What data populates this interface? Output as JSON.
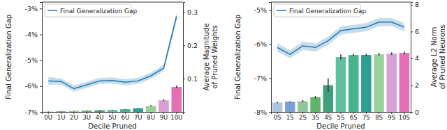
{
  "chart_data": [
    {
      "type": "bar",
      "x_label": "Decile Pruned",
      "y_label": "Final Generalization Gap",
      "y2_label": "Average Magnitude of Pruned Weights",
      "legend": "upper left",
      "categories": [
        "0U",
        "1U",
        "2U",
        "3U",
        "4U",
        "5U",
        "6U",
        "7U",
        "8U",
        "9U",
        "10U"
      ],
      "ylim": [
        -7,
        -2.75
      ],
      "yticks": [
        {
          "value": -7,
          "label": "-7%"
        },
        {
          "value": -6,
          "label": "-6%"
        },
        {
          "value": -5,
          "label": "-5%"
        },
        {
          "value": -4,
          "label": "-4%"
        },
        {
          "value": -3,
          "label": "-3%"
        }
      ],
      "y2lim": [
        0,
        0.33
      ],
      "y2ticks": [
        0.1,
        0.2,
        0.3
      ],
      "series": [
        {
          "name": "Final Generalization Gap",
          "type": "line",
          "color": "#1f77b4",
          "values": [
            -5.8,
            -5.82,
            -6.1,
            -5.95,
            -5.8,
            -5.78,
            -5.85,
            -5.8,
            -5.6,
            -5.3,
            -3.3
          ],
          "errors": [
            0.15,
            0.12,
            0.12,
            0.12,
            0.12,
            0.12,
            0.12,
            0.12,
            0.12,
            0.12,
            0.15
          ]
        },
        {
          "type": "bar",
          "axis": "y2",
          "colors": [
            "#b0c4de",
            "#7b9fd6",
            "#8fc79a",
            "#5fb36a",
            "#3f9f7f",
            "#5fbf9f",
            "#48b38f",
            "#2f9f8f",
            "#9ad39a",
            "#d9a0d8",
            "#e36fb6"
          ],
          "values": [
            0.001,
            0.002,
            0.003,
            0.004,
            0.005,
            0.006,
            0.008,
            0.011,
            0.018,
            0.035,
            0.075
          ],
          "errors": [
            0.0005,
            0.0005,
            0.001,
            0.001,
            0.001,
            0.001,
            0.001,
            0.001,
            0.002,
            0.003,
            0.004
          ]
        }
      ]
    },
    {
      "type": "bar",
      "x_label": "Decile Pruned",
      "y_label": "Final Generalization Gap",
      "y2_label": "Average L2 Norm of Pruned Neurons",
      "legend": "upper left",
      "categories": [
        "0S",
        "1S",
        "2S",
        "3S",
        "4S",
        "5S",
        "6S",
        "7S",
        "8S",
        "9S",
        "10S"
      ],
      "ylim": [
        -8,
        -4.76
      ],
      "yticks": [
        {
          "value": -8,
          "label": "-8%"
        },
        {
          "value": -7,
          "label": "-7%"
        },
        {
          "value": -6,
          "label": "-6%"
        },
        {
          "value": -5,
          "label": "-5%"
        }
      ],
      "y2lim": [
        0,
        8.2
      ],
      "y2ticks": [
        0,
        2,
        4,
        6,
        8
      ],
      "series": [
        {
          "name": "Final Generalization Gap",
          "type": "line",
          "color": "#1f77b4",
          "values": [
            -6.1,
            -6.3,
            -6.05,
            -6.1,
            -5.9,
            -5.6,
            -5.55,
            -5.5,
            -5.35,
            -5.35,
            -5.5
          ],
          "errors": [
            0.12,
            0.12,
            0.12,
            0.12,
            0.12,
            0.12,
            0.12,
            0.12,
            0.12,
            0.12,
            0.12
          ]
        },
        {
          "type": "bar",
          "axis": "y2",
          "colors": [
            "#b0c4de",
            "#7b9fd6",
            "#8fc79a",
            "#5fb36a",
            "#3f9f7f",
            "#5fbf9f",
            "#48b38f",
            "#2f9f8f",
            "#9ad39a",
            "#d9a0d8",
            "#e36fb6"
          ],
          "values": [
            0.7,
            0.75,
            0.8,
            1.1,
            2.0,
            4.1,
            4.25,
            4.25,
            4.3,
            4.35,
            4.4
          ],
          "errors": [
            0.05,
            0.05,
            0.08,
            0.1,
            0.5,
            0.2,
            0.1,
            0.1,
            0.1,
            0.1,
            0.1
          ]
        }
      ]
    }
  ]
}
